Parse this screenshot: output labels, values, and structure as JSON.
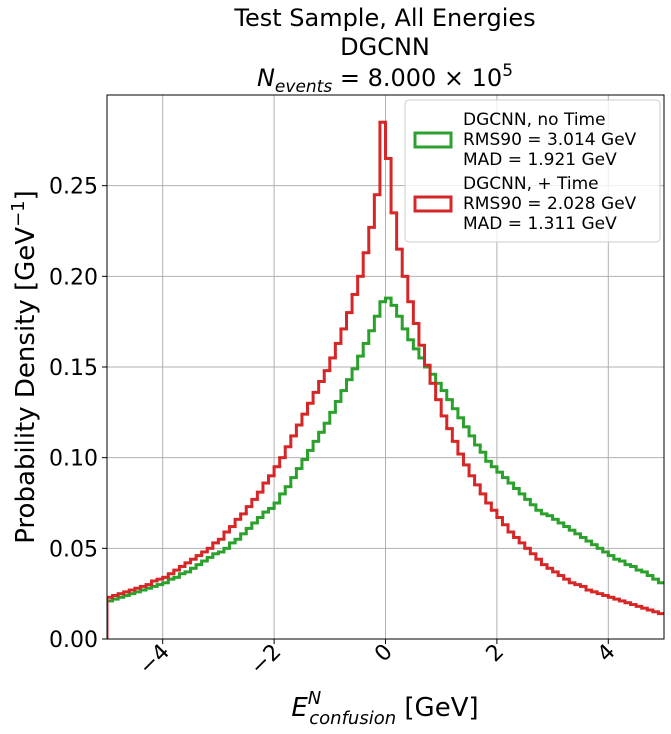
{
  "chart_data": {
    "type": "step-histogram",
    "title_lines": [
      "Test Sample, All Energies",
      "DGCNN"
    ],
    "title_math": {
      "base": "N",
      "subscript": "events",
      "rest": " = 8.000 × 10",
      "superscript": "5"
    },
    "ylabel": {
      "text": "Probability Density [GeV",
      "superscript": "−1",
      "close": "]"
    },
    "xlabel": {
      "base": "E",
      "superscript": "N",
      "subscript": "confusion",
      "rest": " [GeV]"
    },
    "xlim": [
      -5,
      5
    ],
    "ylim": [
      0,
      0.3
    ],
    "xticks": [
      {
        "value": -4,
        "label": "−4"
      },
      {
        "value": -2,
        "label": "−2"
      },
      0,
      2,
      4
    ],
    "yticks": [
      {
        "value": 0,
        "label": "0.00"
      },
      {
        "value": 0.05,
        "label": "0.05"
      },
      {
        "value": 0.1,
        "label": "0.10"
      },
      {
        "value": 0.15,
        "label": "0.15"
      },
      {
        "value": 0.2,
        "label": "0.20"
      },
      {
        "value": 0.25,
        "label": "0.25"
      }
    ],
    "grid": true,
    "legend_position": "upper right",
    "bins": [
      -5,
      -4.9,
      -4.8,
      -4.7,
      -4.6,
      -4.5,
      -4.4,
      -4.3,
      -4.2,
      -4.1,
      -4,
      -3.9,
      -3.8,
      -3.7,
      -3.6,
      -3.5,
      -3.4,
      -3.3,
      -3.2,
      -3.1,
      -3,
      -2.9,
      -2.8,
      -2.7,
      -2.6,
      -2.5,
      -2.4,
      -2.3,
      -2.2,
      -2.1,
      -2,
      -1.9,
      -1.8,
      -1.7,
      -1.6,
      -1.5,
      -1.4,
      -1.3,
      -1.2,
      -1.1,
      -1,
      -0.9,
      -0.8,
      -0.7,
      -0.6,
      -0.5,
      -0.4,
      -0.3,
      -0.2,
      -0.1,
      0,
      0.1,
      0.2,
      0.3,
      0.4,
      0.5,
      0.6,
      0.7,
      0.8,
      0.9,
      1,
      1.1,
      1.2,
      1.3,
      1.4,
      1.5,
      1.6,
      1.7,
      1.8,
      1.9,
      2,
      2.1,
      2.2,
      2.3,
      2.4,
      2.5,
      2.6,
      2.7,
      2.8,
      2.9,
      3,
      3.1,
      3.2,
      3.3,
      3.4,
      3.5,
      3.6,
      3.7,
      3.8,
      3.9,
      4,
      4.1,
      4.2,
      4.3,
      4.4,
      4.5,
      4.6,
      4.7,
      4.8,
      4.9,
      5
    ],
    "series": [
      {
        "name": "DGCNN, no Time",
        "stats": [
          "RMS90 = 3.014 GeV",
          "MAD = 1.921 GeV"
        ],
        "color": "#2ca02c",
        "values": [
          0.021,
          0.022,
          0.023,
          0.024,
          0.025,
          0.026,
          0.027,
          0.028,
          0.029,
          0.03,
          0.031,
          0.033,
          0.034,
          0.036,
          0.037,
          0.039,
          0.041,
          0.043,
          0.045,
          0.047,
          0.048,
          0.05,
          0.053,
          0.055,
          0.058,
          0.061,
          0.064,
          0.067,
          0.07,
          0.072,
          0.075,
          0.08,
          0.084,
          0.089,
          0.094,
          0.099,
          0.104,
          0.109,
          0.114,
          0.119,
          0.125,
          0.131,
          0.137,
          0.143,
          0.149,
          0.156,
          0.163,
          0.17,
          0.178,
          0.186,
          0.188,
          0.184,
          0.178,
          0.171,
          0.165,
          0.16,
          0.155,
          0.15,
          0.146,
          0.141,
          0.137,
          0.132,
          0.127,
          0.122,
          0.117,
          0.112,
          0.107,
          0.103,
          0.098,
          0.095,
          0.092,
          0.089,
          0.086,
          0.083,
          0.08,
          0.077,
          0.074,
          0.071,
          0.069,
          0.068,
          0.066,
          0.064,
          0.062,
          0.06,
          0.058,
          0.056,
          0.054,
          0.052,
          0.05,
          0.048,
          0.046,
          0.044,
          0.043,
          0.041,
          0.04,
          0.038,
          0.037,
          0.035,
          0.033,
          0.031
        ]
      },
      {
        "name": "DGCNN, + Time",
        "stats": [
          "RMS90 = 2.028 GeV",
          "MAD = 1.311 GeV"
        ],
        "color": "#d62728",
        "values": [
          0.023,
          0.024,
          0.025,
          0.026,
          0.027,
          0.028,
          0.029,
          0.03,
          0.032,
          0.033,
          0.034,
          0.036,
          0.038,
          0.04,
          0.042,
          0.044,
          0.046,
          0.048,
          0.05,
          0.053,
          0.055,
          0.059,
          0.062,
          0.066,
          0.069,
          0.073,
          0.077,
          0.081,
          0.086,
          0.09,
          0.095,
          0.1,
          0.106,
          0.112,
          0.118,
          0.124,
          0.13,
          0.136,
          0.142,
          0.148,
          0.155,
          0.163,
          0.171,
          0.18,
          0.19,
          0.2,
          0.213,
          0.227,
          0.245,
          0.285,
          0.265,
          0.235,
          0.215,
          0.2,
          0.186,
          0.174,
          0.162,
          0.151,
          0.141,
          0.132,
          0.123,
          0.116,
          0.109,
          0.102,
          0.096,
          0.09,
          0.085,
          0.08,
          0.075,
          0.071,
          0.067,
          0.063,
          0.059,
          0.056,
          0.053,
          0.05,
          0.047,
          0.044,
          0.041,
          0.039,
          0.037,
          0.035,
          0.033,
          0.031,
          0.03,
          0.029,
          0.027,
          0.026,
          0.025,
          0.024,
          0.023,
          0.022,
          0.021,
          0.02,
          0.019,
          0.018,
          0.017,
          0.016,
          0.015,
          0.014
        ]
      }
    ]
  }
}
